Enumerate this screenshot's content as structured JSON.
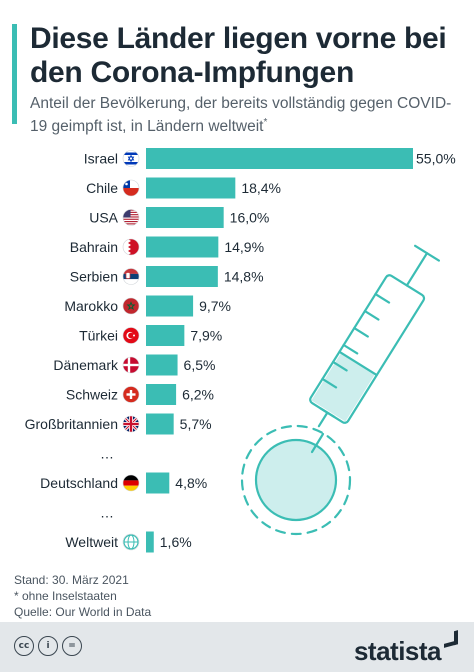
{
  "header": {
    "title": "Diese Länder liegen vorne bei den Corona-Impfungen",
    "subtitle": "Anteil der Bevölkerung, der bereits vollständig gegen COVID-19 geimpft ist, in Ländern weltweit",
    "subtitle_mark": "*"
  },
  "colors": {
    "accent": "#3bbdb4",
    "text": "#1d2a35",
    "muted": "#55606a"
  },
  "chart_data": {
    "type": "bar",
    "orientation": "horizontal",
    "categories": [
      "Israel",
      "Chile",
      "USA",
      "Bahrain",
      "Serbien",
      "Marokko",
      "Türkei",
      "Dänemark",
      "Schweiz",
      "Großbritannien",
      "…",
      "Deutschland",
      "…",
      "Weltweit"
    ],
    "values": [
      55.0,
      18.4,
      16.0,
      14.9,
      14.8,
      9.7,
      7.9,
      6.5,
      6.2,
      5.7,
      null,
      4.8,
      null,
      1.6
    ],
    "value_labels": [
      "55,0%",
      "18,4%",
      "16,0%",
      "14,9%",
      "14,8%",
      "9,7%",
      "7,9%",
      "6,5%",
      "6,2%",
      "5,7%",
      "",
      "4,8%",
      "",
      "1,6%"
    ],
    "flags": [
      "israel-flag-icon",
      "chile-flag-icon",
      "usa-flag-icon",
      "bahrain-flag-icon",
      "serbia-flag-icon",
      "morocco-flag-icon",
      "turkey-flag-icon",
      "denmark-flag-icon",
      "switzerland-flag-icon",
      "uk-flag-icon",
      "",
      "germany-flag-icon",
      "",
      "globe-icon"
    ],
    "xlim": [
      0,
      55
    ],
    "bar_color": "#3bbdb4",
    "grid": false
  },
  "footer": {
    "date": "Stand: 30. März 2021",
    "note": "* ohne Inselstaaten",
    "source": "Quelle: Our World in Data",
    "brand": "statista"
  }
}
